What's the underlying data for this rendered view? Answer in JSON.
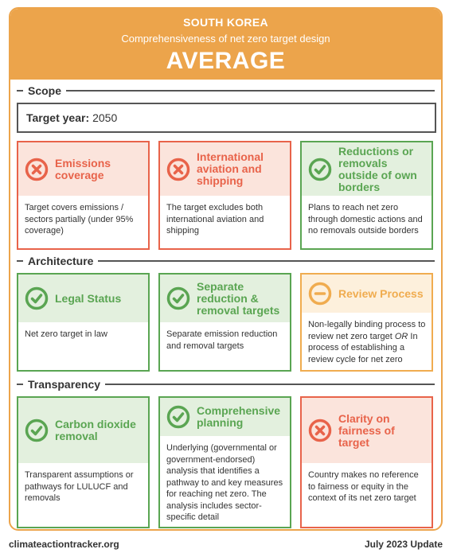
{
  "header": {
    "country": "SOUTH KOREA",
    "subtitle": "Comprehensiveness of net zero target design",
    "rating": "AVERAGE"
  },
  "colors": {
    "accent_orange": "#eca44b",
    "red": "#e8634a",
    "green": "#5aa552",
    "amber": "#f0ac4f"
  },
  "sections": {
    "scope": "Scope",
    "architecture": "Architecture",
    "transparency": "Transparency"
  },
  "target_year": {
    "label": "Target year:",
    "value": "2050"
  },
  "cards": {
    "emissions_coverage": {
      "title": "Emissions coverage",
      "status": "insufficient",
      "icon": "x-circle-icon",
      "body": "Target covers emissions / sectors partially (under 95% coverage)"
    },
    "international_aviation": {
      "title": "International aviation and shipping",
      "status": "insufficient",
      "icon": "x-circle-icon",
      "body": "The target excludes both international aviation and shipping"
    },
    "reductions_removals": {
      "title": "Reductions or removals outside of own borders",
      "status": "acceptable",
      "icon": "check-circle-icon",
      "body": "Plans to reach net zero through domestic actions and no removals outside borders"
    },
    "legal_status": {
      "title": "Legal Status",
      "status": "acceptable",
      "icon": "check-circle-icon",
      "body": "Net zero target in law"
    },
    "separate_targets": {
      "title": "Separate reduction & removal targets",
      "status": "acceptable",
      "icon": "check-circle-icon",
      "body": "Separate emission reduction and removal targets"
    },
    "review_process": {
      "title": "Review Process",
      "status": "partial",
      "icon": "minus-circle-icon",
      "body_before": "Non-legally binding process to review net zero target ",
      "body_emph": "OR",
      "body_after": " In process of establishing a review cycle for net zero"
    },
    "co2_removal": {
      "title": "Carbon dioxide removal",
      "status": "acceptable",
      "icon": "check-circle-icon",
      "body": "Transparent assumptions or pathways for LULUCF and removals"
    },
    "comprehensive_planning": {
      "title": "Comprehensive planning",
      "status": "acceptable",
      "icon": "check-circle-icon",
      "body": "Underlying (governmental or government-endorsed) analysis that identifies a pathway to and key measures for reaching net zero. The analysis includes sector-specific detail"
    },
    "fairness": {
      "title": "Clarity on fairness of target",
      "status": "insufficient",
      "icon": "x-circle-icon",
      "body": "Country makes no reference to fairness or equity in the context of its net zero target"
    }
  },
  "footer": {
    "website": "climateactiontracker.org",
    "update": "July 2023 Update"
  }
}
